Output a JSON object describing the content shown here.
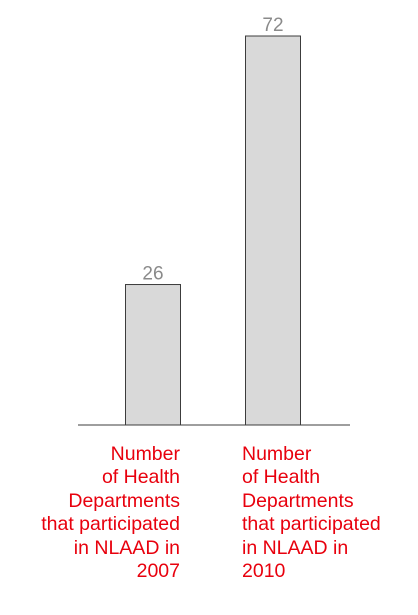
{
  "chart_data": {
    "type": "bar",
    "categories": [
      "Number\nof Health\nDepartments\nthat participated\nin NLAAD in\n2007",
      "Number\nof Health\nDepartments\nthat participated\nin NLAAD in\n2010"
    ],
    "values": [
      26,
      72
    ],
    "data_labels": [
      "26",
      "72"
    ],
    "title": "",
    "xlabel": "",
    "ylabel": "",
    "ylim": [
      0,
      72
    ],
    "grid": false,
    "legend": "none"
  },
  "colors": {
    "bar_fill": "#d9d9d9",
    "bar_stroke": "#3c3c3c",
    "axis": "#3c3c3c",
    "data_label": "#8a8a8a",
    "category_label": "#e8000d"
  }
}
